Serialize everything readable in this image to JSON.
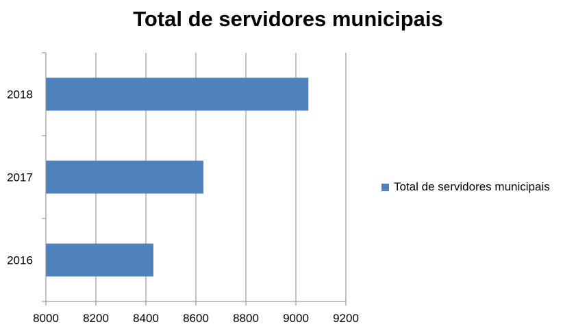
{
  "chart_data": {
    "type": "bar",
    "orientation": "horizontal",
    "title": "Total de servidores municipais",
    "categories": [
      "2016",
      "2017",
      "2018"
    ],
    "series": [
      {
        "name": "Total de servidores municipais",
        "values": [
          8430,
          8630,
          9050
        ],
        "color": "#4F81BD"
      }
    ],
    "xlim": [
      8000,
      9200
    ],
    "xticks": [
      "8000",
      "8200",
      "8400",
      "8600",
      "8800",
      "9000",
      "9200"
    ],
    "grid": true,
    "legend_position": "right"
  }
}
